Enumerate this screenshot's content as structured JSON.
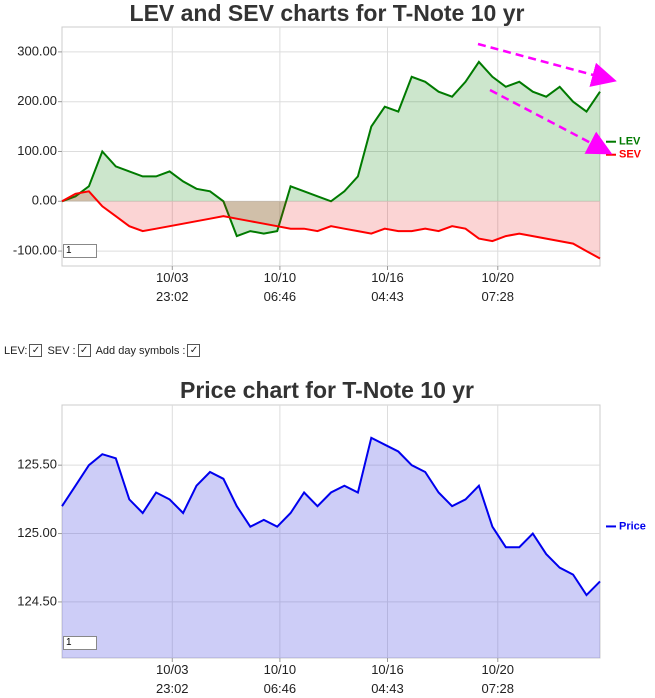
{
  "chart_data": [
    {
      "type": "line",
      "title": "LEV and SEV charts for T-Note 10 yr",
      "x": [
        0,
        1,
        2,
        3,
        4,
        5,
        6,
        7,
        8,
        9,
        10,
        11,
        12,
        13,
        14,
        15,
        16,
        17,
        18,
        19,
        20,
        21,
        22,
        23,
        24,
        25,
        26,
        27,
        28,
        29,
        30,
        31,
        32,
        33,
        34,
        35,
        36,
        37,
        38,
        39,
        40
      ],
      "xlim": [
        0,
        40
      ],
      "xticks": [
        {
          "value": 8.2,
          "label": "10/03 23:02"
        },
        {
          "value": 16.2,
          "label": "10/10 06:46"
        },
        {
          "value": 24.2,
          "label": "10/16 04:43"
        },
        {
          "value": 32.4,
          "label": "10/20 07:28"
        }
      ],
      "ylim": [
        -130,
        350
      ],
      "yticks": [
        {
          "value": -100,
          "label": "-100.00"
        },
        {
          "value": 0,
          "label": "0.00"
        },
        {
          "value": 100,
          "label": "100.00"
        },
        {
          "value": 200,
          "label": "200.00"
        },
        {
          "value": 300,
          "label": "300.00"
        }
      ],
      "grid": true,
      "legend": "right",
      "input": "1",
      "series": [
        {
          "name": "LEV",
          "color": "#007a00",
          "fill": "rgba(0,128,0,0.2)",
          "values": [
            0,
            10,
            30,
            100,
            70,
            60,
            50,
            50,
            60,
            40,
            25,
            20,
            0,
            -70,
            -60,
            -65,
            -60,
            30,
            20,
            10,
            0,
            20,
            50,
            150,
            190,
            180,
            250,
            240,
            220,
            210,
            240,
            280,
            250,
            230,
            240,
            220,
            210,
            230,
            200,
            180,
            220
          ]
        },
        {
          "name": "SEV",
          "color": "#ff0000",
          "fill": "rgba(230,0,0,0.17)",
          "values": [
            0,
            15,
            20,
            -10,
            -30,
            -50,
            -60,
            -55,
            -50,
            -45,
            -40,
            -35,
            -30,
            -35,
            -40,
            -45,
            -50,
            -55,
            -55,
            -60,
            -50,
            -55,
            -60,
            -65,
            -55,
            -60,
            -60,
            -55,
            -60,
            -50,
            -55,
            -75,
            -80,
            -70,
            -65,
            -70,
            -75,
            -80,
            -85,
            -100,
            -115
          ]
        }
      ]
    },
    {
      "type": "line",
      "title": "Price chart for T-Note 10 yr",
      "x": [
        0,
        1,
        2,
        3,
        4,
        5,
        6,
        7,
        8,
        9,
        10,
        11,
        12,
        13,
        14,
        15,
        16,
        17,
        18,
        19,
        20,
        21,
        22,
        23,
        24,
        25,
        26,
        27,
        28,
        29,
        30,
        31,
        32,
        33,
        34,
        35,
        36,
        37,
        38,
        39,
        40
      ],
      "xlim": [
        0,
        40
      ],
      "xticks": [
        {
          "value": 8.2,
          "label": "10/03 23:02"
        },
        {
          "value": 16.2,
          "label": "10/10 06:46"
        },
        {
          "value": 24.2,
          "label": "10/16 04:43"
        },
        {
          "value": 32.4,
          "label": "10/20 07:28"
        }
      ],
      "ylim": [
        124.09,
        125.94
      ],
      "yticks": [
        {
          "value": 124.5,
          "label": "124.50"
        },
        {
          "value": 125,
          "label": "125.00"
        },
        {
          "value": 125.5,
          "label": "125.50"
        }
      ],
      "grid": true,
      "legend": "right",
      "input": "1",
      "series": [
        {
          "name": "Price",
          "color": "#0000ee",
          "fill": "rgba(90,90,230,0.3)",
          "values": [
            125.2,
            125.35,
            125.5,
            125.58,
            125.55,
            125.25,
            125.15,
            125.3,
            125.25,
            125.15,
            125.35,
            125.45,
            125.4,
            125.2,
            125.05,
            125.1,
            125.05,
            125.15,
            125.3,
            125.2,
            125.3,
            125.35,
            125.3,
            125.7,
            125.65,
            125.6,
            125.5,
            125.45,
            125.3,
            125.2,
            125.25,
            125.35,
            125.05,
            124.9,
            124.9,
            125.0,
            124.85,
            124.75,
            124.7,
            124.55,
            124.65
          ]
        }
      ]
    }
  ],
  "controls": {
    "lev": "LEV:",
    "sev": "SEV :",
    "day": "Add day symbols :"
  }
}
